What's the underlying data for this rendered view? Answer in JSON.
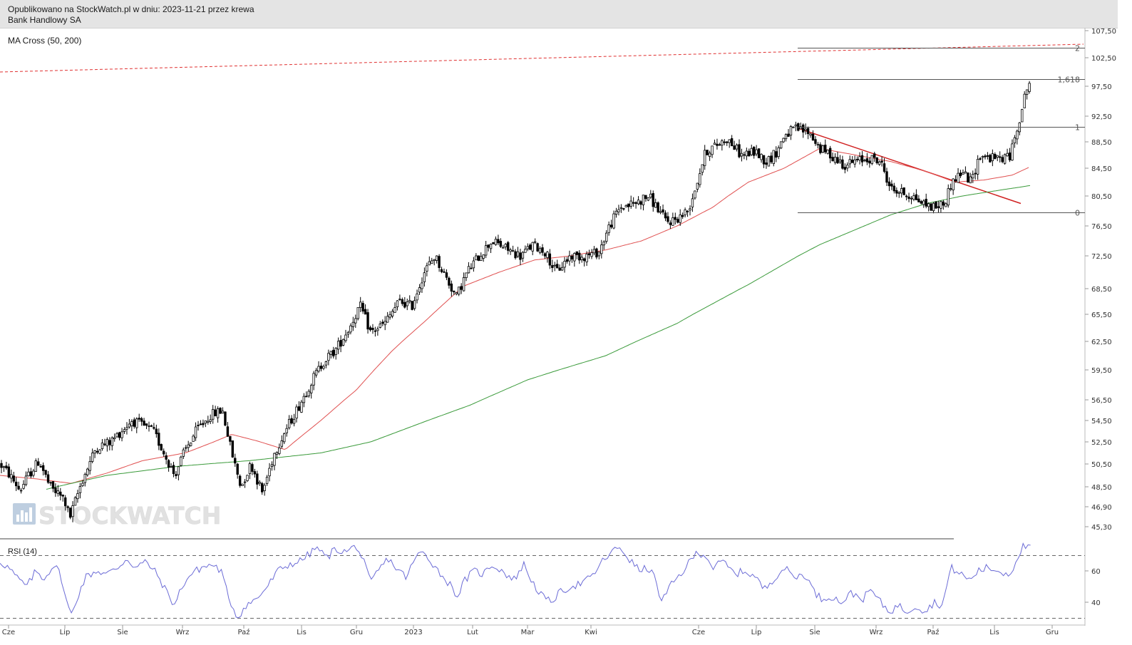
{
  "header": {
    "published": "Opublikowano na StockWatch.pl w dniu: 2023-11-21 przez krewa",
    "ticker": "Bank Handlowy SA"
  },
  "watermark": "STOCKWATCH",
  "chart_data": [
    {
      "type": "candlestick",
      "indicator_label": "MA Cross (50, 200)",
      "y_ticks": [
        "107,50",
        "102,50",
        "97,50",
        "92,50",
        "88,50",
        "84,50",
        "80,50",
        "76,50",
        "72,50",
        "68,50",
        "65,50",
        "62,50",
        "59,50",
        "56,50",
        "54,50",
        "52,50",
        "50,50",
        "48,50",
        "46,90",
        "45,30"
      ],
      "x_months": [
        "Cze",
        "Lip",
        "Sie",
        "Wrz",
        "Paź",
        "Lis",
        "Gru",
        "2023",
        "Lut",
        "Mar",
        "Kwi",
        "Cze",
        "Lip",
        "Sie",
        "Wrz",
        "Paź",
        "Lis",
        "Gru"
      ],
      "close_anchors": [
        [
          0,
          50.5
        ],
        [
          14,
          49.5
        ],
        [
          28,
          48.2
        ],
        [
          40,
          49.5
        ],
        [
          55,
          50.8
        ],
        [
          70,
          48.5
        ],
        [
          90,
          47.5
        ],
        [
          98,
          46.0
        ],
        [
          115,
          49.0
        ],
        [
          135,
          52.0
        ],
        [
          155,
          52.5
        ],
        [
          170,
          53.5
        ],
        [
          185,
          54.5
        ],
        [
          200,
          54.0
        ],
        [
          215,
          53.5
        ],
        [
          230,
          51.5
        ],
        [
          245,
          49.5
        ],
        [
          258,
          51.5
        ],
        [
          275,
          53.5
        ],
        [
          295,
          55.0
        ],
        [
          312,
          55.5
        ],
        [
          325,
          51.5
        ],
        [
          338,
          48.5
        ],
        [
          352,
          50.5
        ],
        [
          368,
          48.0
        ],
        [
          385,
          51.5
        ],
        [
          400,
          53.5
        ],
        [
          420,
          56.0
        ],
        [
          438,
          58.5
        ],
        [
          455,
          60.5
        ],
        [
          470,
          61.5
        ],
        [
          490,
          64.0
        ],
        [
          505,
          66.5
        ],
        [
          520,
          63.5
        ],
        [
          540,
          64.5
        ],
        [
          560,
          67.0
        ],
        [
          578,
          66.5
        ],
        [
          595,
          70.5
        ],
        [
          610,
          72.5
        ],
        [
          625,
          70.0
        ],
        [
          640,
          67.5
        ],
        [
          655,
          70.5
        ],
        [
          672,
          72.5
        ],
        [
          690,
          74.5
        ],
        [
          710,
          73.5
        ],
        [
          730,
          72.5
        ],
        [
          748,
          74.0
        ],
        [
          765,
          73.0
        ],
        [
          780,
          70.5
        ],
        [
          800,
          72.5
        ],
        [
          820,
          72.5
        ],
        [
          840,
          73.0
        ],
        [
          855,
          76.5
        ],
        [
          870,
          79.0
        ],
        [
          890,
          79.5
        ],
        [
          910,
          80.5
        ],
        [
          925,
          78.5
        ],
        [
          935,
          77.0
        ],
        [
          950,
          77.5
        ],
        [
          965,
          78.5
        ],
        [
          975,
          81.5
        ],
        [
          990,
          87.0
        ],
        [
          1005,
          88.0
        ],
        [
          1020,
          89.0
        ],
        [
          1040,
          86.5
        ],
        [
          1060,
          87.0
        ],
        [
          1075,
          85.5
        ],
        [
          1090,
          87.0
        ],
        [
          1100,
          89.5
        ],
        [
          1115,
          90.5
        ],
        [
          1135,
          90.0
        ],
        [
          1150,
          87.5
        ],
        [
          1165,
          86.5
        ],
        [
          1185,
          85.0
        ],
        [
          1200,
          85.5
        ],
        [
          1220,
          86.0
        ],
        [
          1235,
          85.5
        ],
        [
          1250,
          81.5
        ],
        [
          1265,
          81.0
        ],
        [
          1280,
          80.5
        ],
        [
          1295,
          79.5
        ],
        [
          1310,
          79.0
        ],
        [
          1325,
          79.5
        ],
        [
          1335,
          82.5
        ],
        [
          1350,
          84.0
        ],
        [
          1362,
          82.5
        ],
        [
          1375,
          86.5
        ],
        [
          1390,
          86.0
        ],
        [
          1405,
          86.0
        ],
        [
          1418,
          86.5
        ],
        [
          1425,
          90.0
        ],
        [
          1432,
          93.0
        ],
        [
          1440,
          97.0
        ],
        [
          1446,
          98.5
        ]
      ],
      "ma50_anchors": [
        [
          0,
          49.5
        ],
        [
          50,
          49.2
        ],
        [
          100,
          48.8
        ],
        [
          150,
          49.7
        ],
        [
          200,
          50.8
        ],
        [
          260,
          51.5
        ],
        [
          300,
          52.5
        ],
        [
          325,
          53.2
        ],
        [
          360,
          52.6
        ],
        [
          400,
          51.8
        ],
        [
          450,
          54.5
        ],
        [
          500,
          57.5
        ],
        [
          550,
          61.5
        ],
        [
          600,
          65.0
        ],
        [
          650,
          68.8
        ],
        [
          700,
          70.5
        ],
        [
          750,
          72.0
        ],
        [
          800,
          72.5
        ],
        [
          850,
          73.3
        ],
        [
          900,
          74.5
        ],
        [
          950,
          76.5
        ],
        [
          1000,
          79.0
        ],
        [
          1050,
          82.5
        ],
        [
          1100,
          84.5
        ],
        [
          1150,
          87.5
        ],
        [
          1200,
          86.5
        ],
        [
          1250,
          85.5
        ],
        [
          1300,
          84.0
        ],
        [
          1340,
          82.5
        ],
        [
          1380,
          82.8
        ],
        [
          1420,
          83.5
        ],
        [
          1445,
          84.7
        ]
      ],
      "ma200_anchors": [
        [
          65,
          48.3
        ],
        [
          150,
          49.5
        ],
        [
          250,
          50.3
        ],
        [
          350,
          50.8
        ],
        [
          450,
          51.5
        ],
        [
          520,
          52.5
        ],
        [
          600,
          54.5
        ],
        [
          660,
          56.0
        ],
        [
          740,
          58.5
        ],
        [
          850,
          61.0
        ],
        [
          950,
          64.5
        ],
        [
          1050,
          69.0
        ],
        [
          1150,
          74.0
        ],
        [
          1250,
          78.0
        ],
        [
          1300,
          79.5
        ],
        [
          1350,
          80.5
        ],
        [
          1400,
          81.3
        ],
        [
          1445,
          82.0
        ]
      ],
      "fibonacci": [
        {
          "label": "2",
          "value": 104.3
        },
        {
          "label": "1,618",
          "value": 98.8
        },
        {
          "label": "1",
          "value": 90.8
        },
        {
          "label": "0",
          "value": 78.3
        }
      ],
      "resistance_line": {
        "from": [
          0,
          100.0
        ],
        "to": [
          1520,
          105.0
        ]
      },
      "downtrend_line": {
        "from": [
          1120,
          90.6
        ],
        "to": [
          1432,
          79.5
        ]
      }
    },
    {
      "type": "line",
      "indicator_label": "RSI (14)",
      "y_ticks": [
        "60",
        "40"
      ],
      "levels": [
        70,
        30
      ],
      "rsi_anchors": [
        [
          0,
          66
        ],
        [
          12,
          62
        ],
        [
          25,
          55
        ],
        [
          38,
          50
        ],
        [
          50,
          60
        ],
        [
          62,
          55
        ],
        [
          75,
          64
        ],
        [
          85,
          58
        ],
        [
          92,
          42
        ],
        [
          100,
          32
        ],
        [
          110,
          45
        ],
        [
          120,
          56
        ],
        [
          135,
          60
        ],
        [
          150,
          58
        ],
        [
          165,
          62
        ],
        [
          178,
          68
        ],
        [
          190,
          62
        ],
        [
          205,
          66
        ],
        [
          220,
          58
        ],
        [
          232,
          48
        ],
        [
          245,
          38
        ],
        [
          255,
          50
        ],
        [
          268,
          58
        ],
        [
          282,
          62
        ],
        [
          298,
          64
        ],
        [
          310,
          60
        ],
        [
          320,
          44
        ],
        [
          333,
          30
        ],
        [
          345,
          38
        ],
        [
          360,
          42
        ],
        [
          375,
          50
        ],
        [
          390,
          60
        ],
        [
          405,
          64
        ],
        [
          420,
          66
        ],
        [
          432,
          70
        ],
        [
          445,
          75
        ],
        [
          458,
          68
        ],
        [
          470,
          74
        ],
        [
          485,
          72
        ],
        [
          500,
          76
        ],
        [
          510,
          66
        ],
        [
          520,
          52
        ],
        [
          530,
          60
        ],
        [
          545,
          68
        ],
        [
          555,
          62
        ],
        [
          570,
          56
        ],
        [
          585,
          70
        ],
        [
          595,
          72
        ],
        [
          605,
          66
        ],
        [
          618,
          58
        ],
        [
          630,
          52
        ],
        [
          642,
          44
        ],
        [
          652,
          54
        ],
        [
          665,
          60
        ],
        [
          678,
          58
        ],
        [
          690,
          64
        ],
        [
          705,
          60
        ],
        [
          720,
          54
        ],
        [
          735,
          64
        ],
        [
          748,
          52
        ],
        [
          760,
          44
        ],
        [
          772,
          40
        ],
        [
          785,
          46
        ],
        [
          800,
          50
        ],
        [
          815,
          52
        ],
        [
          830,
          56
        ],
        [
          845,
          66
        ],
        [
          858,
          72
        ],
        [
          870,
          75
        ],
        [
          885,
          66
        ],
        [
          898,
          60
        ],
        [
          910,
          62
        ],
        [
          920,
          54
        ],
        [
          928,
          40
        ],
        [
          940,
          50
        ],
        [
          955,
          58
        ],
        [
          968,
          66
        ],
        [
          978,
          72
        ],
        [
          990,
          70
        ],
        [
          1000,
          62
        ],
        [
          1015,
          66
        ],
        [
          1030,
          58
        ],
        [
          1045,
          60
        ],
        [
          1060,
          56
        ],
        [
          1072,
          48
        ],
        [
          1085,
          55
        ],
        [
          1100,
          62
        ],
        [
          1115,
          56
        ],
        [
          1130,
          58
        ],
        [
          1140,
          48
        ],
        [
          1152,
          42
        ],
        [
          1165,
          44
        ],
        [
          1180,
          40
        ],
        [
          1195,
          46
        ],
        [
          1210,
          42
        ],
        [
          1222,
          48
        ],
        [
          1235,
          40
        ],
        [
          1248,
          34
        ],
        [
          1260,
          38
        ],
        [
          1272,
          34
        ],
        [
          1285,
          38
        ],
        [
          1298,
          34
        ],
        [
          1310,
          40
        ],
        [
          1322,
          38
        ],
        [
          1334,
          62
        ],
        [
          1348,
          58
        ],
        [
          1360,
          54
        ],
        [
          1372,
          60
        ],
        [
          1385,
          62
        ],
        [
          1400,
          60
        ],
        [
          1413,
          58
        ],
        [
          1420,
          60
        ],
        [
          1428,
          70
        ],
        [
          1436,
          76
        ],
        [
          1446,
          74
        ]
      ]
    }
  ]
}
